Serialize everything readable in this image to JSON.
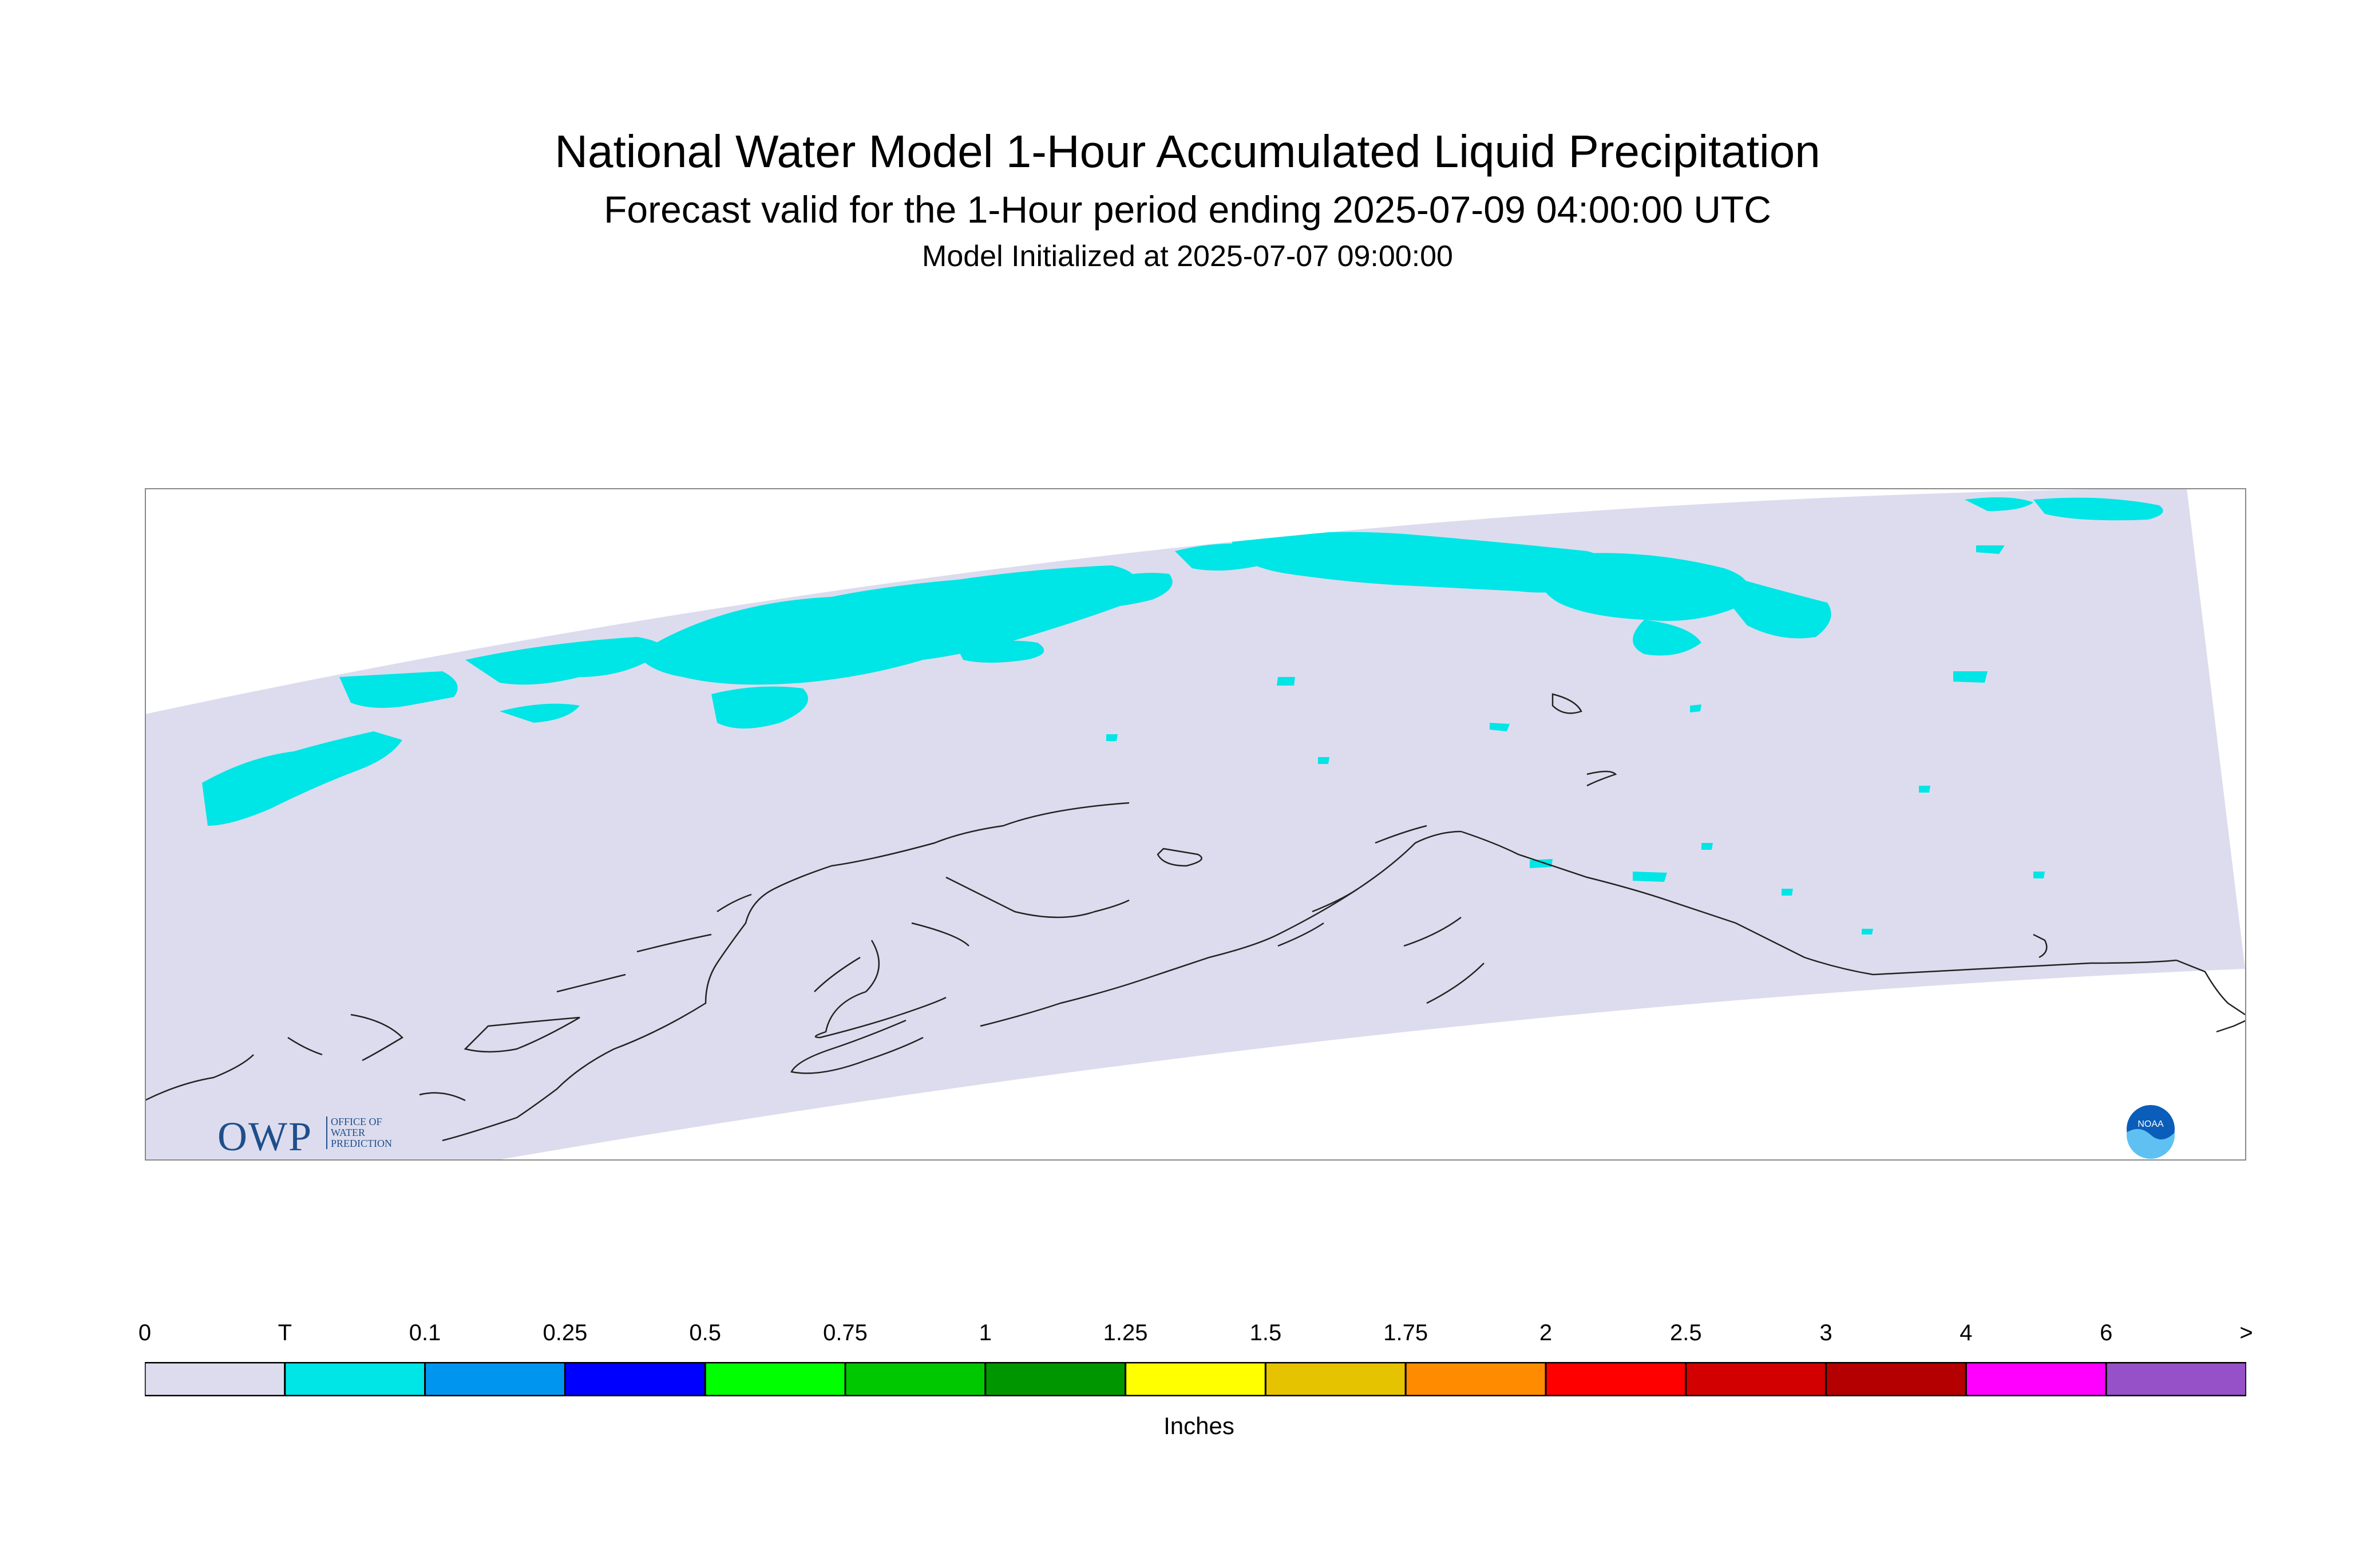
{
  "header": {
    "title": "National Water Model 1-Hour Accumulated Liquid Precipitation",
    "subtitle": "Forecast valid for the 1-Hour period ending 2025-07-09 04:00:00 UTC",
    "init_line": "Model Initialized at 2025-07-07 09:00:00"
  },
  "map": {
    "region": "Alaska",
    "domain_color": "#dcdcee",
    "precip_color": "#00e5e5",
    "coastline_color": "#222222",
    "logos": {
      "owp": {
        "mark": "OWP",
        "text_lines": [
          "OFFICE OF",
          "WATER",
          "PREDICTION"
        ]
      },
      "noaa": {
        "mark": "NOAA"
      }
    }
  },
  "legend": {
    "units": "Inches",
    "labels": [
      "0",
      "T",
      "0.1",
      "0.25",
      "0.5",
      "0.75",
      "1",
      "1.25",
      "1.5",
      "1.75",
      "2",
      "2.5",
      "3",
      "4",
      "6",
      ">"
    ],
    "colors": [
      "#dcdcee",
      "#00e5e5",
      "#0096f0",
      "#0000ff",
      "#00ff00",
      "#00c800",
      "#009600",
      "#ffff00",
      "#e6c300",
      "#ff8c00",
      "#ff0000",
      "#d20000",
      "#b40000",
      "#ff00ff",
      "#9650c8"
    ]
  }
}
